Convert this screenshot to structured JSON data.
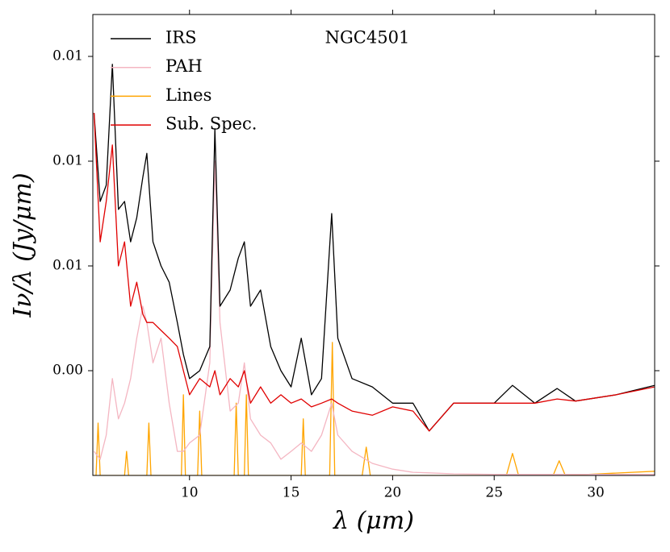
{
  "chart_data": {
    "type": "line",
    "title": "NGC4501",
    "xlabel": "λ (μm)",
    "ylabel": "Iν/λ (Jy/μm)",
    "xlim": [
      5.24,
      32.9
    ],
    "ylim": [
      0.002,
      0.0108
    ],
    "xticks": [
      10,
      15,
      20,
      25,
      30
    ],
    "yticks": [
      {
        "value": 0.004,
        "label": "0.00"
      },
      {
        "value": 0.006,
        "label": "0.01"
      },
      {
        "value": 0.008,
        "label": "0.01"
      },
      {
        "value": 0.01,
        "label": "0.01"
      }
    ],
    "legend": "upper left",
    "series": [
      {
        "name": "IRS",
        "color": "#000000",
        "x": [
          5.3,
          5.6,
          5.9,
          6.2,
          6.5,
          6.8,
          7.1,
          7.4,
          7.7,
          7.9,
          8.2,
          8.6,
          9.0,
          9.4,
          9.7,
          10.0,
          10.5,
          11.0,
          11.25,
          11.5,
          12.0,
          12.4,
          12.7,
          13.0,
          13.5,
          14.0,
          14.5,
          15.0,
          15.5,
          16.0,
          16.5,
          17.0,
          17.3,
          18.0,
          19.0,
          20.0,
          21.0,
          21.8,
          23.0,
          25.0,
          25.9,
          27.0,
          28.1,
          29.0,
          31.0,
          32.9
        ],
        "values": [
          0.00892,
          0.00723,
          0.00754,
          0.00985,
          0.00708,
          0.00723,
          0.00646,
          0.00692,
          0.00769,
          0.00815,
          0.00646,
          0.006,
          0.00569,
          0.00492,
          0.00431,
          0.00385,
          0.004,
          0.00446,
          0.00862,
          0.00523,
          0.00554,
          0.00615,
          0.00646,
          0.00523,
          0.00554,
          0.00446,
          0.004,
          0.00369,
          0.00462,
          0.00354,
          0.00385,
          0.007,
          0.00462,
          0.00385,
          0.00369,
          0.00338,
          0.00338,
          0.00285,
          0.00338,
          0.00338,
          0.00372,
          0.00338,
          0.00366,
          0.00342,
          0.00354,
          0.00372
        ]
      },
      {
        "name": "PAH",
        "color": "#f4b6c2",
        "x": [
          5.3,
          5.6,
          5.9,
          6.2,
          6.5,
          6.8,
          7.1,
          7.4,
          7.7,
          7.9,
          8.2,
          8.6,
          9.0,
          9.4,
          9.7,
          10.0,
          10.5,
          11.0,
          11.25,
          11.5,
          12.0,
          12.4,
          12.7,
          13.0,
          13.5,
          14.0,
          14.5,
          15.0,
          15.5,
          16.0,
          16.5,
          17.0,
          17.3,
          18.0,
          19.0,
          20.0,
          21.0,
          21.8,
          23.0,
          25.0,
          25.9,
          27.0,
          28.1,
          29.0,
          31.0,
          32.9
        ],
        "values": [
          0.00246,
          0.00231,
          0.00277,
          0.00385,
          0.00308,
          0.00338,
          0.00385,
          0.00462,
          0.00523,
          0.00492,
          0.00415,
          0.00462,
          0.00338,
          0.00246,
          0.00246,
          0.00262,
          0.00277,
          0.00415,
          0.008,
          0.00492,
          0.00323,
          0.00338,
          0.00415,
          0.00308,
          0.00277,
          0.00262,
          0.00231,
          0.00246,
          0.00262,
          0.00246,
          0.00277,
          0.00338,
          0.00277,
          0.00246,
          0.00223,
          0.00212,
          0.00206,
          0.00205,
          0.00203,
          0.00202,
          0.00202,
          0.00202,
          0.00202,
          0.00202,
          0.00202,
          0.00202
        ]
      },
      {
        "name": "Lines",
        "color": "#ffa500",
        "x": [
          5.24,
          5.4,
          5.5,
          5.6,
          6.8,
          6.9,
          7.0,
          7.9,
          8.0,
          8.1,
          9.6,
          9.7,
          9.8,
          10.4,
          10.5,
          10.6,
          12.2,
          12.3,
          12.4,
          12.7,
          12.8,
          12.9,
          15.5,
          15.6,
          15.7,
          16.9,
          17.03,
          17.15,
          18.5,
          18.7,
          18.9,
          25.6,
          25.9,
          26.2,
          27.9,
          28.2,
          28.5,
          32.9
        ],
        "values": [
          0.002,
          0.002,
          0.003,
          0.002,
          0.002,
          0.00246,
          0.002,
          0.002,
          0.003,
          0.002,
          0.002,
          0.00354,
          0.002,
          0.002,
          0.00323,
          0.002,
          0.002,
          0.00338,
          0.002,
          0.002,
          0.00354,
          0.002,
          0.002,
          0.00308,
          0.002,
          0.002,
          0.00454,
          0.002,
          0.002,
          0.00254,
          0.002,
          0.002,
          0.00242,
          0.002,
          0.002,
          0.00228,
          0.002,
          0.00208
        ]
      },
      {
        "name": "Sub. Spec.",
        "color": "#e00000",
        "x": [
          5.3,
          5.6,
          5.9,
          6.2,
          6.5,
          6.8,
          7.1,
          7.4,
          7.7,
          7.9,
          8.2,
          8.6,
          9.0,
          9.4,
          9.7,
          10.0,
          10.5,
          11.0,
          11.25,
          11.5,
          12.0,
          12.4,
          12.7,
          13.0,
          13.5,
          14.0,
          14.5,
          15.0,
          15.5,
          16.0,
          16.5,
          17.0,
          17.3,
          18.0,
          19.0,
          20.0,
          21.0,
          21.8,
          23.0,
          25.0,
          25.9,
          27.0,
          28.1,
          29.0,
          31.0,
          32.9
        ],
        "values": [
          0.00892,
          0.00646,
          0.00723,
          0.00831,
          0.006,
          0.00646,
          0.00523,
          0.00569,
          0.00508,
          0.00492,
          0.00492,
          0.00477,
          0.00462,
          0.00446,
          0.004,
          0.00354,
          0.00385,
          0.00369,
          0.004,
          0.00354,
          0.00385,
          0.00369,
          0.004,
          0.00338,
          0.00369,
          0.00338,
          0.00354,
          0.00338,
          0.00346,
          0.00331,
          0.00338,
          0.00346,
          0.00338,
          0.00323,
          0.00315,
          0.00331,
          0.00323,
          0.00285,
          0.00338,
          0.00338,
          0.00338,
          0.00338,
          0.00346,
          0.00342,
          0.00354,
          0.00369
        ]
      }
    ]
  }
}
